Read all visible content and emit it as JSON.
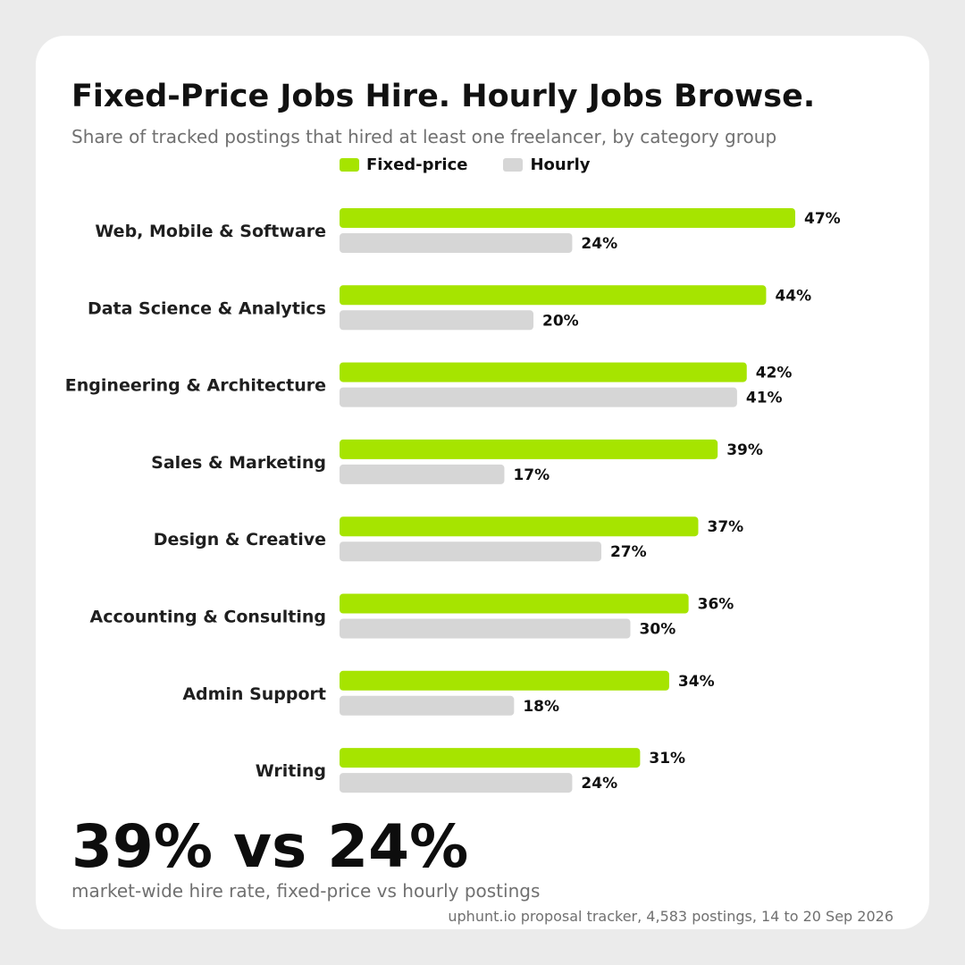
{
  "header": {
    "title": "Fixed-Price Jobs Hire. Hourly Jobs Browse.",
    "subtitle": "Share of tracked postings that hired at least one freelancer, by category group"
  },
  "colors": {
    "fixed": "#a6e400",
    "hourly": "#d6d6d6",
    "text": "#111111",
    "muted": "#707070",
    "background": "#ebebeb",
    "card": "#ffffff"
  },
  "chart_data": {
    "type": "bar",
    "orientation": "horizontal",
    "title": "Fixed-Price Jobs Hire. Hourly Jobs Browse.",
    "subtitle": "Share of tracked postings that hired at least one freelancer, by category group",
    "categories": [
      "Web, Mobile & Software",
      "Data Science & Analytics",
      "Engineering & Architecture",
      "Sales & Marketing",
      "Design & Creative",
      "Accounting & Consulting",
      "Admin Support",
      "Writing"
    ],
    "series": [
      {
        "name": "Fixed-price",
        "color": "#a6e400",
        "values": [
          47,
          44,
          42,
          39,
          37,
          36,
          34,
          31
        ]
      },
      {
        "name": "Hourly",
        "color": "#d6d6d6",
        "values": [
          24,
          20,
          41,
          17,
          27,
          30,
          18,
          24
        ]
      }
    ],
    "value_suffix": "%",
    "xlim": [
      0,
      47
    ],
    "legend_position": "top",
    "grid": false
  },
  "headline": {
    "value": "39% vs 24%",
    "note": "market-wide hire rate, fixed-price vs hourly postings"
  },
  "source": "uphunt.io proposal tracker, 4,583 postings, 14 to 20 Sep 2026"
}
